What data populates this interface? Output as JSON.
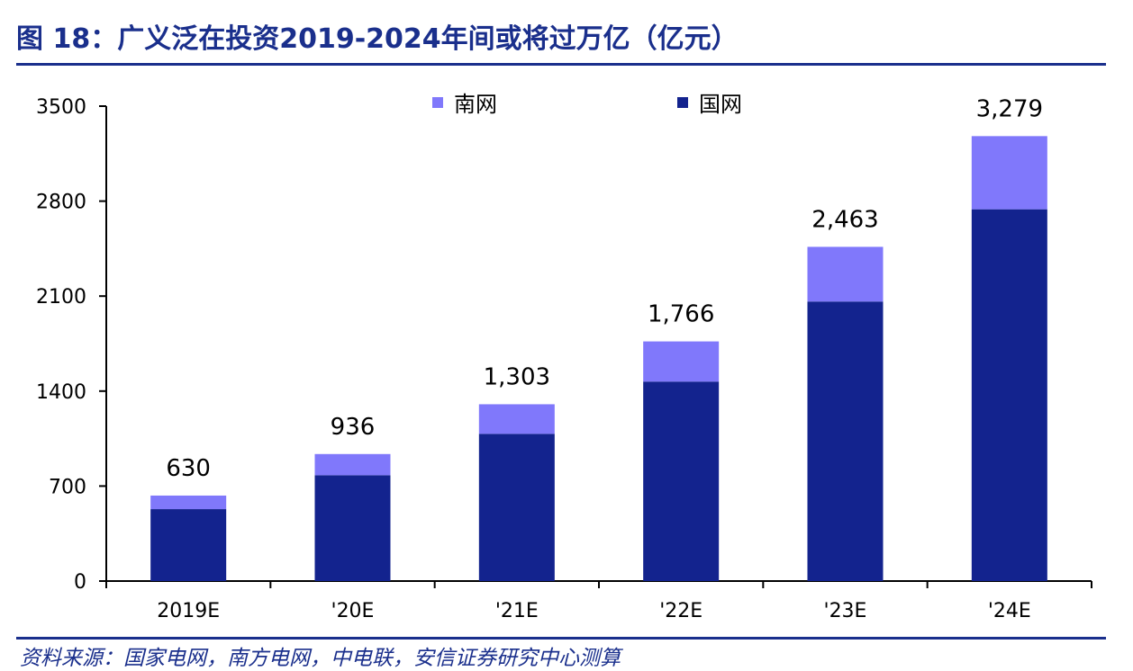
{
  "header": {
    "title": "图 18：广义泛在投资2019-2024年间或将过万亿（亿元）"
  },
  "footer": {
    "source": "资料来源：国家电网，南方电网，中电联，安信证券研究中心测算"
  },
  "colors": {
    "state_grid": "#13238e",
    "southern_grid": "#8078fb",
    "accent": "#1a2f8c"
  },
  "chart_data": {
    "type": "bar",
    "stacked": true,
    "categories": [
      "2019E",
      "'20E",
      "'21E",
      "'22E",
      "'23E",
      "'24E"
    ],
    "series": [
      {
        "name": "国网",
        "values": [
          530,
          780,
          1085,
          1470,
          2060,
          2740
        ]
      },
      {
        "name": "南网",
        "values": [
          100,
          156,
          218,
          296,
          403,
          539
        ]
      }
    ],
    "totals": [
      630,
      936,
      1303,
      1766,
      2463,
      3279
    ],
    "total_labels": [
      "630",
      "936",
      "1,303",
      "1,766",
      "2,463",
      "3,279"
    ],
    "yticks": [
      "0",
      "700",
      "1400",
      "2100",
      "2800",
      "3500"
    ],
    "ylim": [
      0,
      3500
    ],
    "legend": [
      "南网",
      "国网"
    ],
    "legend_position": "top",
    "grid": false
  }
}
